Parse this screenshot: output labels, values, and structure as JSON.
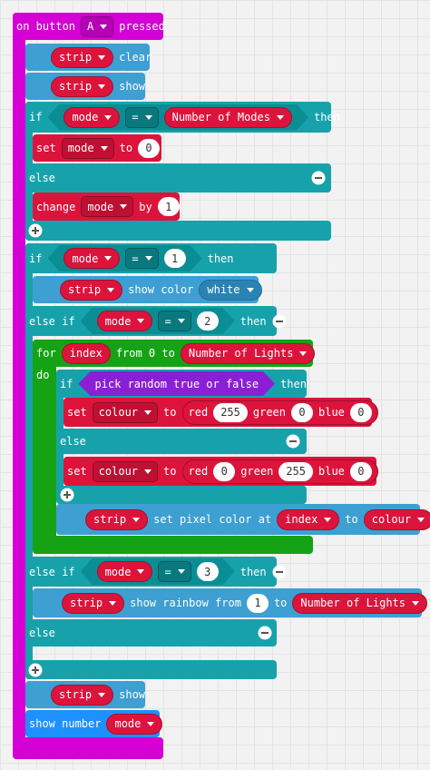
{
  "header": {
    "on": "on button",
    "button": "A",
    "pressed": "pressed"
  },
  "strip_clear": {
    "object": "strip",
    "action": "clear"
  },
  "strip_show_1": {
    "object": "strip",
    "action": "show"
  },
  "if_1": {
    "if": "if",
    "variable": "mode",
    "operator": "=",
    "value": "Number of Modes",
    "then": "then"
  },
  "set_mode": {
    "set": "set",
    "variable": "mode",
    "to": "to",
    "value": 0
  },
  "else_1": {
    "label": "else"
  },
  "change_mode": {
    "change": "change",
    "variable": "mode",
    "by": "by",
    "value": 1
  },
  "if_2": {
    "if": "if",
    "variable": "mode",
    "operator": "=",
    "value": 1,
    "then": "then"
  },
  "show_color": {
    "object": "strip",
    "action": "show color",
    "color": "white"
  },
  "else_if_2": {
    "label": "else if",
    "variable": "mode",
    "operator": "=",
    "value": 2,
    "then": "then"
  },
  "for_loop": {
    "for": "for",
    "variable": "index",
    "from": "from 0 to",
    "limit": "Number of Lights",
    "do": "do"
  },
  "if_3": {
    "if": "if",
    "condition": "pick random true or false",
    "then": "then"
  },
  "set_colour_1": {
    "set": "set",
    "variable": "colour",
    "to": "to",
    "red": "red",
    "red_value": 255,
    "green": "green",
    "green_value": 0,
    "blue": "blue",
    "blue_value": 0
  },
  "else_3": {
    "label": "else"
  },
  "set_colour_2": {
    "set": "set",
    "variable": "colour",
    "to": "to",
    "red": "red",
    "red_value": 0,
    "green": "green",
    "green_value": 255,
    "blue": "blue",
    "blue_value": 0
  },
  "set_pixel": {
    "object": "strip",
    "action": "set pixel color at",
    "index": "index",
    "to": "to",
    "color": "colour"
  },
  "else_if_3": {
    "label": "else if",
    "variable": "mode",
    "operator": "=",
    "value": 3,
    "then": "then"
  },
  "rainbow": {
    "object": "strip",
    "action": "show rainbow from",
    "from": 1,
    "to": "to",
    "to_value": "Number of Lights"
  },
  "else_4": {
    "label": "else"
  },
  "strip_show_2": {
    "object": "strip",
    "action": "show"
  },
  "show_number": {
    "label": "show number",
    "variable": "mode"
  }
}
